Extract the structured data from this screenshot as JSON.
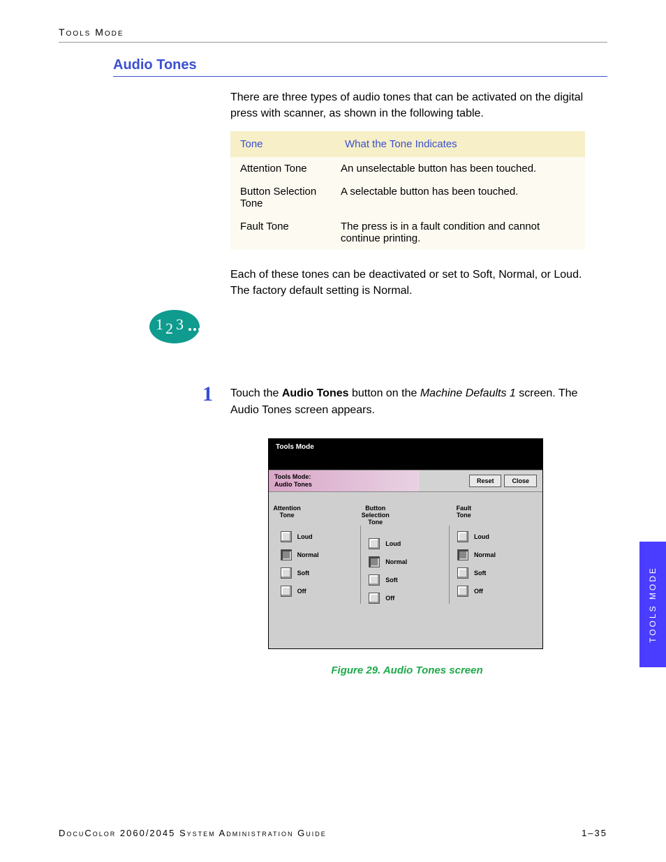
{
  "running_head": "Tools Mode",
  "section_title": "Audio Tones",
  "intro_text": "There are three types of audio tones that can be activated on the digital press with scanner, as shown in the following table.",
  "table": {
    "header_bg": "#f6efc7",
    "body_bg": "#fcfaf1",
    "header_color": "#3a4fd1",
    "columns": [
      "Tone",
      "What the Tone Indicates"
    ],
    "rows": [
      [
        "Attention Tone",
        "An unselectable button has been touched."
      ],
      [
        "Button Selection Tone",
        "A selectable button has been touched."
      ],
      [
        "Fault Tone",
        "The press is in a fault condition and cannot continue printing."
      ]
    ]
  },
  "outro_text": "Each of these tones can be deactivated or set to Soft, Normal, or Loud. The factory default setting is Normal.",
  "steps_icon": {
    "bg": "#0f9b8e",
    "text_color": "#ffffff",
    "label": "123..."
  },
  "step1": {
    "number": "1",
    "pre": "Touch the ",
    "bold": "Audio Tones",
    "mid": " button on the ",
    "italic": "Machine Defaults 1",
    "post": " screen. The Audio Tones screen appears."
  },
  "screenshot": {
    "top_title": "Tools Mode",
    "header_line1": "Tools Mode:",
    "header_line2": "Audio Tones",
    "reset_label": "Reset",
    "close_label": "Close",
    "option_labels": [
      "Loud",
      "Normal",
      "Soft",
      "Off"
    ],
    "columns": [
      {
        "title": "Attention Tone",
        "selected_index": 1
      },
      {
        "title": "Button Selection Tone",
        "selected_index": 1
      },
      {
        "title": "Fault Tone",
        "selected_index": 1
      }
    ],
    "gradient_from": "#d9a6c8",
    "gradient_to": "#e9d2e3",
    "panel_bg": "#cfcfcf"
  },
  "figure_caption": "Figure 29. Audio Tones screen",
  "side_tab": "TOOLS MODE",
  "footer_left": "DocuColor 2060/2045 System Administration Guide",
  "footer_right": "1–35",
  "colors": {
    "link_blue": "#3a4fd1",
    "caption_green": "#1fa84a",
    "tab_purple": "#4a3dff"
  }
}
